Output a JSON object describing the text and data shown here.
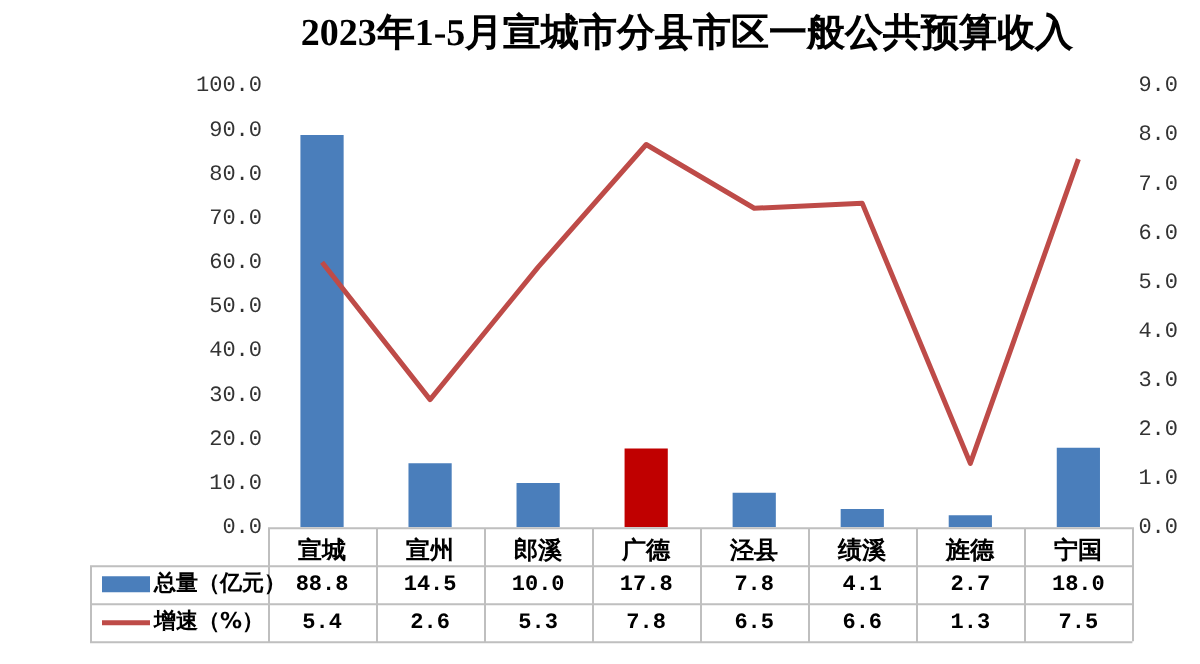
{
  "chart_data": {
    "type": "bar",
    "title": "2023年1-5月宣城市分县市区一般公共预算收入",
    "categories": [
      "宣城",
      "宣州",
      "郎溪",
      "广德",
      "泾县",
      "绩溪",
      "旌德",
      "宁国"
    ],
    "series": [
      {
        "name": "总量（亿元）",
        "color": "#4a7ebb",
        "colors": [
          "#4a7ebb",
          "#4a7ebb",
          "#4a7ebb",
          "#c00000",
          "#4a7ebb",
          "#4a7ebb",
          "#4a7ebb",
          "#4a7ebb"
        ],
        "values": [
          88.8,
          14.5,
          10.0,
          17.8,
          7.8,
          4.1,
          2.7,
          18.0
        ],
        "value_labels": [
          "88.8",
          "14.5",
          "10.0",
          "17.8",
          "7.8",
          "4.1",
          "2.7",
          "18.0"
        ]
      },
      {
        "name": "增速（%）",
        "type": "line",
        "axis": "y2",
        "color": "#be4b48",
        "values": [
          5.4,
          2.6,
          5.3,
          7.8,
          6.5,
          6.6,
          1.3,
          7.5
        ],
        "value_labels": [
          "5.4",
          "2.6",
          "5.3",
          "7.8",
          "6.5",
          "6.6",
          "1.3",
          "7.5"
        ]
      }
    ],
    "ylim": [
      0,
      100
    ],
    "yticks": [
      {
        "value": 0,
        "label": "0.0"
      },
      {
        "value": 10,
        "label": "10.0"
      },
      {
        "value": 20,
        "label": "20.0"
      },
      {
        "value": 30,
        "label": "30.0"
      },
      {
        "value": 40,
        "label": "40.0"
      },
      {
        "value": 50,
        "label": "50.0"
      },
      {
        "value": 60,
        "label": "60.0"
      },
      {
        "value": 70,
        "label": "70.0"
      },
      {
        "value": 80,
        "label": "80.0"
      },
      {
        "value": 90,
        "label": "90.0"
      },
      {
        "value": 100,
        "label": "100.0"
      }
    ],
    "y2lim": [
      0,
      9
    ],
    "y2ticks": [
      {
        "value": 0,
        "label": "0.0"
      },
      {
        "value": 1,
        "label": "1.0"
      },
      {
        "value": 2,
        "label": "2.0"
      },
      {
        "value": 3,
        "label": "3.0"
      },
      {
        "value": 4,
        "label": "4.0"
      },
      {
        "value": 5,
        "label": "5.0"
      },
      {
        "value": 6,
        "label": "6.0"
      },
      {
        "value": 7,
        "label": "7.0"
      },
      {
        "value": 8,
        "label": "8.0"
      },
      {
        "value": 9,
        "label": "9.0"
      }
    ],
    "marker": "none",
    "legend": "bottom"
  }
}
